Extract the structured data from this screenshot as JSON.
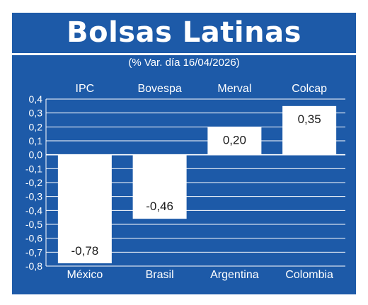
{
  "title": "Bolsas Latinas",
  "subtitle": "(% Var. día 16/04/2026)",
  "colors": {
    "background": "#1d5aa8",
    "bars": "#ffffff",
    "grid": "#ffffff",
    "text": "#ffffff"
  },
  "chart_data": {
    "type": "bar",
    "title": "Bolsas Latinas",
    "subtitle": "(% Var. día 16/04/2026)",
    "indices": [
      "IPC",
      "Bovespa",
      "Merval",
      "Colcap"
    ],
    "categories": [
      "México",
      "Brasil",
      "Argentina",
      "Colombia"
    ],
    "values": [
      -0.78,
      -0.46,
      0.2,
      0.35
    ],
    "value_labels": [
      "-0,78",
      "-0,46",
      "0,20",
      "0,35"
    ],
    "ylim": [
      -0.8,
      0.4
    ],
    "yticks": [
      0.4,
      0.3,
      0.2,
      0.1,
      0.0,
      -0.1,
      -0.2,
      -0.3,
      -0.4,
      -0.5,
      -0.6,
      -0.7,
      -0.8
    ],
    "ytick_labels": [
      "0,4",
      "0,3",
      "0,2",
      "0,1",
      "0,0",
      "-0,1",
      "-0,2",
      "-0,3",
      "-0,4",
      "-0,5",
      "-0,6",
      "-0,7",
      "-0,8"
    ],
    "grid": true
  }
}
